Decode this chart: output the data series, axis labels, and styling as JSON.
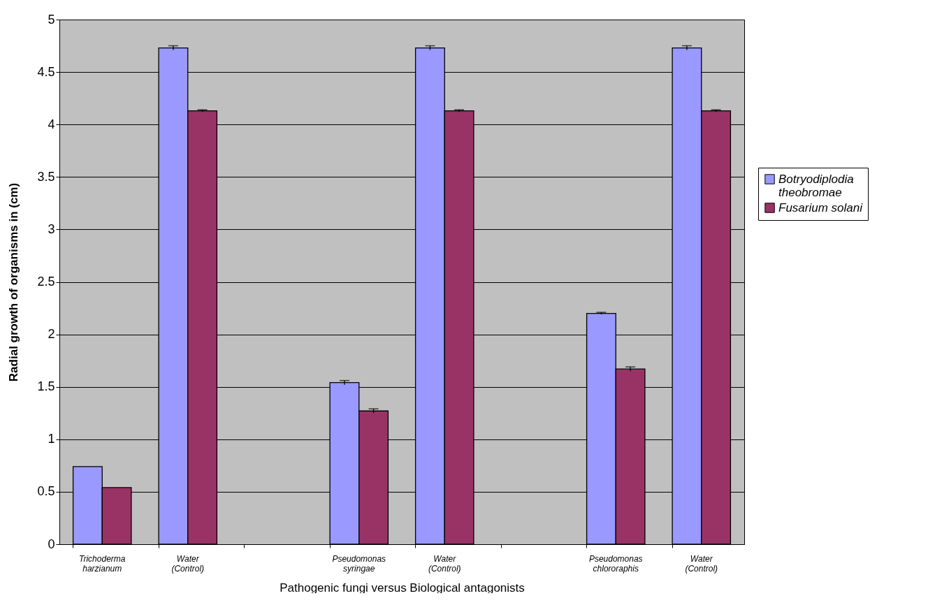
{
  "chart_data": {
    "type": "bar",
    "xlabel": "Pathogenic fungi versus Biological antagonists",
    "ylabel": "Radial growth of organisms in (cm)",
    "categories": [
      "Trichoderma harzianum",
      "Water (Control)",
      null,
      "Pseudomonas syringae",
      "Water (Control)",
      null,
      "Pseudomonas chlororaphis",
      "Water (Control)"
    ],
    "series": [
      {
        "name": "Botryodiplodia theobromae",
        "color": "#9999ff",
        "values": [
          0.74,
          4.73,
          null,
          1.54,
          4.73,
          null,
          2.2,
          4.73
        ],
        "errors": [
          null,
          0.02,
          null,
          0.02,
          0.02,
          null,
          0.01,
          0.02
        ]
      },
      {
        "name": "Fusarium solani",
        "color": "#993366",
        "values": [
          0.54,
          4.13,
          null,
          1.27,
          4.13,
          null,
          1.67,
          4.13
        ],
        "errors": [
          null,
          0.01,
          null,
          0.02,
          0.01,
          null,
          0.02,
          0.01
        ]
      }
    ],
    "ylim": [
      0,
      5
    ],
    "yticks": [
      0,
      0.5,
      1,
      1.5,
      2,
      2.5,
      3,
      3.5,
      4,
      4.5,
      5
    ],
    "grid": "y",
    "legend": "right"
  }
}
